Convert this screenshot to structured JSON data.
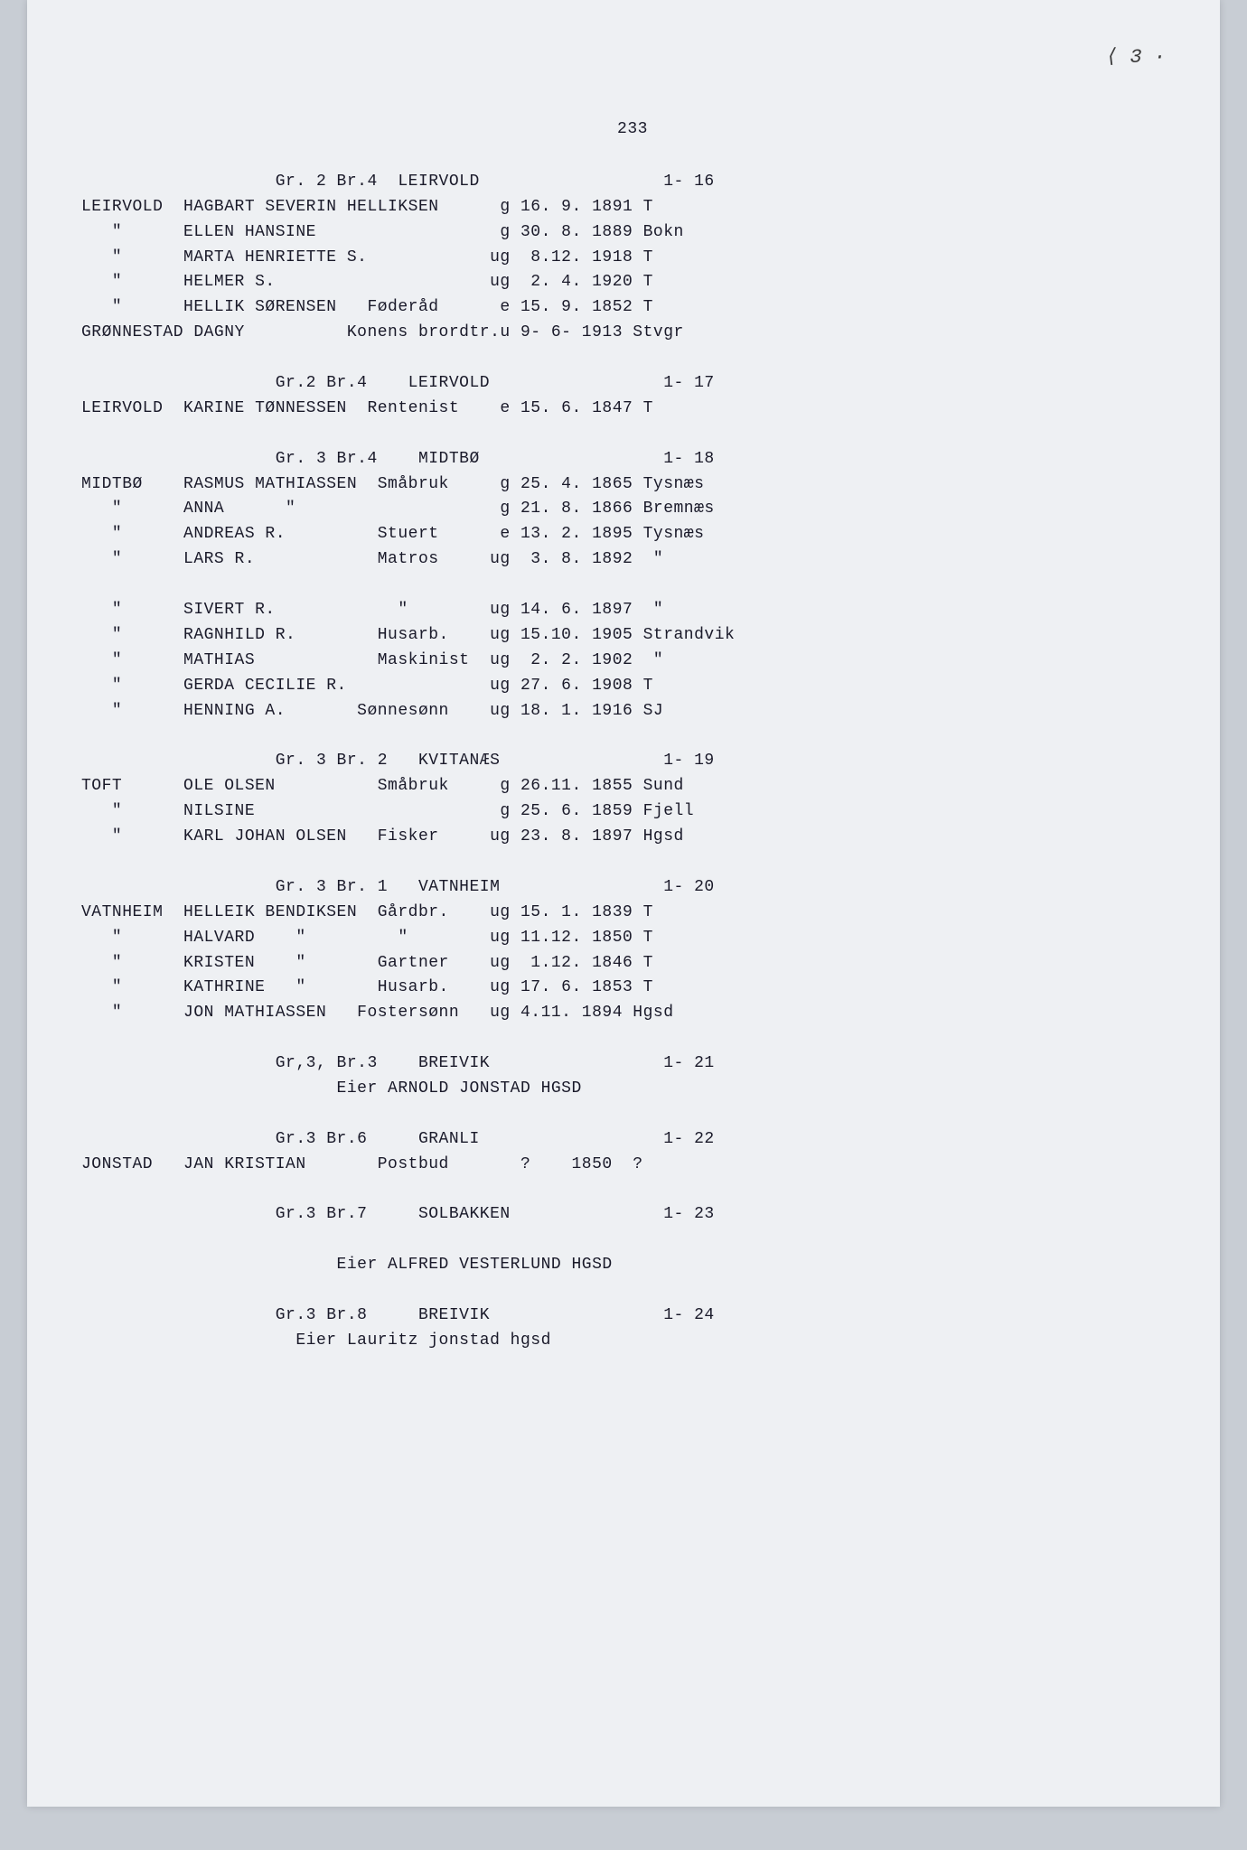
{
  "handwritten_note": "⟨ 3 ·",
  "page_number": "233",
  "background_color": "#eef0f3",
  "text_color": "#1a1a2a",
  "font_family": "Courier New",
  "font_size_pt": 14,
  "lines": [
    "                   Gr. 2 Br.4  LEIRVOLD                  1- 16",
    "LEIRVOLD  HAGBART SEVERIN HELLIKSEN      g 16. 9. 1891 T",
    "   \"      ELLEN HANSINE                  g 30. 8. 1889 Bokn",
    "   \"      MARTA HENRIETTE S.            ug  8.12. 1918 T",
    "   \"      HELMER S.                     ug  2. 4. 1920 T",
    "   \"      HELLIK SØRENSEN   Føderåd      e 15. 9. 1852 T",
    "GRØNNESTAD DAGNY          Konens brordtr.u 9- 6- 1913 Stvgr",
    "",
    "                   Gr.2 Br.4    LEIRVOLD                 1- 17",
    "LEIRVOLD  KARINE TØNNESSEN  Rentenist    e 15. 6. 1847 T",
    "",
    "                   Gr. 3 Br.4    MIDTBØ                  1- 18",
    "MIDTBØ    RASMUS MATHIASSEN  Småbruk     g 25. 4. 1865 Tysnæs",
    "   \"      ANNA      \"                    g 21. 8. 1866 Bremnæs",
    "   \"      ANDREAS R.         Stuert      e 13. 2. 1895 Tysnæs",
    "   \"      LARS R.            Matros     ug  3. 8. 1892  \"",
    "",
    "   \"      SIVERT R.            \"        ug 14. 6. 1897  \"",
    "   \"      RAGNHILD R.        Husarb.    ug 15.10. 1905 Strandvik",
    "   \"      MATHIAS            Maskinist  ug  2. 2. 1902  \"",
    "   \"      GERDA CECILIE R.              ug 27. 6. 1908 T",
    "   \"      HENNING A.       Sønnesønn    ug 18. 1. 1916 SJ",
    "",
    "                   Gr. 3 Br. 2   KVITANÆS                1- 19",
    "TOFT      OLE OLSEN          Småbruk     g 26.11. 1855 Sund",
    "   \"      NILSINE                        g 25. 6. 1859 Fjell",
    "   \"      KARL JOHAN OLSEN   Fisker     ug 23. 8. 1897 Hgsd",
    "",
    "                   Gr. 3 Br. 1   VATNHEIM                1- 20",
    "VATNHEIM  HELLEIK BENDIKSEN  Gårdbr.    ug 15. 1. 1839 T",
    "   \"      HALVARD    \"         \"        ug 11.12. 1850 T",
    "   \"      KRISTEN    \"       Gartner    ug  1.12. 1846 T",
    "   \"      KATHRINE   \"       Husarb.    ug 17. 6. 1853 T",
    "   \"      JON MATHIASSEN   Fostersønn   ug 4.11. 1894 Hgsd",
    "",
    "                   Gr,3, Br.3    BREIVIK                 1- 21",
    "                         Eier ARNOLD JONSTAD HGSD",
    "",
    "                   Gr.3 Br.6     GRANLI                  1- 22",
    "JONSTAD   JAN KRISTIAN       Postbud       ?    1850  ?",
    "",
    "                   Gr.3 Br.7     SOLBAKKEN               1- 23",
    "",
    "                         Eier ALFRED VESTERLUND HGSD",
    "",
    "                   Gr.3 Br.8     BREIVIK                 1- 24",
    "                     Eier Lauritz jonstad hgsd"
  ]
}
